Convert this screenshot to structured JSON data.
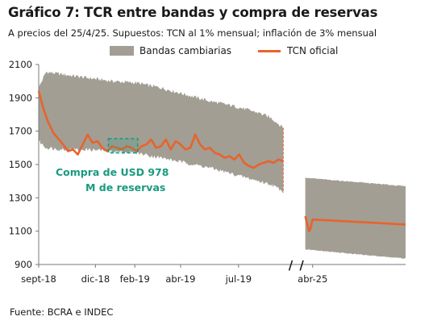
{
  "title": "Gráfico 7: TCR entre bandas y compra de reservas",
  "subtitle": "A precios del 25/4/25. Supuestos: TCN al 1% mensual; inflación de 3% mensual",
  "source": "Fuente: BCRA e INDEC",
  "chart_data": {
    "type": "area",
    "ylim": [
      900,
      2100
    ],
    "yticks": [
      900,
      1100,
      1300,
      1500,
      1700,
      1900,
      2100
    ],
    "xticks": [
      {
        "label": "sept-18",
        "t": 0
      },
      {
        "label": "dic-18",
        "t": 0.232
      },
      {
        "label": "feb-19",
        "t": 0.393
      },
      {
        "label": "abr-19",
        "t": 0.58
      },
      {
        "label": "jul-19",
        "t": 0.817
      },
      {
        "label": "abr-25",
        "t": 1.12
      }
    ],
    "axis_breaks": [
      "/",
      "/"
    ],
    "legend": [
      "Bandas cambiarias",
      "TCN oficial"
    ],
    "colors": {
      "band": "#a29e94",
      "line": "#e8632b",
      "annotation": "#1a9a80",
      "axis": "#7a7a7a"
    },
    "annotation": {
      "text_lines": [
        "Compra de USD 978",
        "M de reservas"
      ],
      "period_t": [
        0.285,
        0.405
      ],
      "y_range": [
        1570,
        1655
      ]
    },
    "series": [
      {
        "name": "Bandas cambiarias",
        "segments": [
          {
            "t": [
              0,
              0.03,
              0.1,
              0.2,
              0.3,
              0.4,
              0.5,
              0.6,
              0.7,
              0.8,
              0.9,
              0.95,
              1.0
            ],
            "upper": [
              1960,
              2055,
              2040,
              2020,
              2000,
              1990,
              1960,
              1920,
              1880,
              1850,
              1810,
              1780,
              1720
            ],
            "lower": [
              1640,
              1600,
              1590,
              1590,
              1580,
              1570,
              1540,
              1510,
              1480,
              1440,
              1400,
              1380,
              1340
            ]
          },
          {
            "t": [
              1.09,
              1.5
            ],
            "upper": [
              1420,
              1370
            ],
            "lower": [
              990,
              935
            ]
          }
        ]
      },
      {
        "name": "TCN oficial",
        "segments": [
          {
            "t": [
              0,
              0.02,
              0.04,
              0.06,
              0.08,
              0.1,
              0.12,
              0.14,
              0.16,
              0.18,
              0.2,
              0.22,
              0.24,
              0.26,
              0.28,
              0.3,
              0.32,
              0.34,
              0.36,
              0.38,
              0.4,
              0.42,
              0.44,
              0.46,
              0.48,
              0.5,
              0.52,
              0.54,
              0.56,
              0.58,
              0.6,
              0.62,
              0.64,
              0.66,
              0.68,
              0.7,
              0.72,
              0.74,
              0.76,
              0.78,
              0.8,
              0.82,
              0.84,
              0.86,
              0.88,
              0.9,
              0.92,
              0.94,
              0.96,
              0.98,
              1.0
            ],
            "y": [
              1940,
              1830,
              1750,
              1690,
              1655,
              1620,
              1580,
              1590,
              1560,
              1620,
              1680,
              1630,
              1640,
              1600,
              1580,
              1610,
              1600,
              1590,
              1610,
              1600,
              1580,
              1610,
              1620,
              1650,
              1600,
              1610,
              1650,
              1590,
              1640,
              1620,
              1590,
              1600,
              1680,
              1620,
              1590,
              1600,
              1570,
              1560,
              1540,
              1550,
              1530,
              1560,
              1510,
              1490,
              1480,
              1500,
              1510,
              1520,
              1510,
              1530,
              1520
            ]
          },
          {
            "t": [
              1.09,
              1.1,
              1.105,
              1.11,
              1.12,
              1.5
            ],
            "y": [
              1190,
              1130,
              1100,
              1110,
              1170,
              1140
            ]
          }
        ]
      }
    ]
  }
}
